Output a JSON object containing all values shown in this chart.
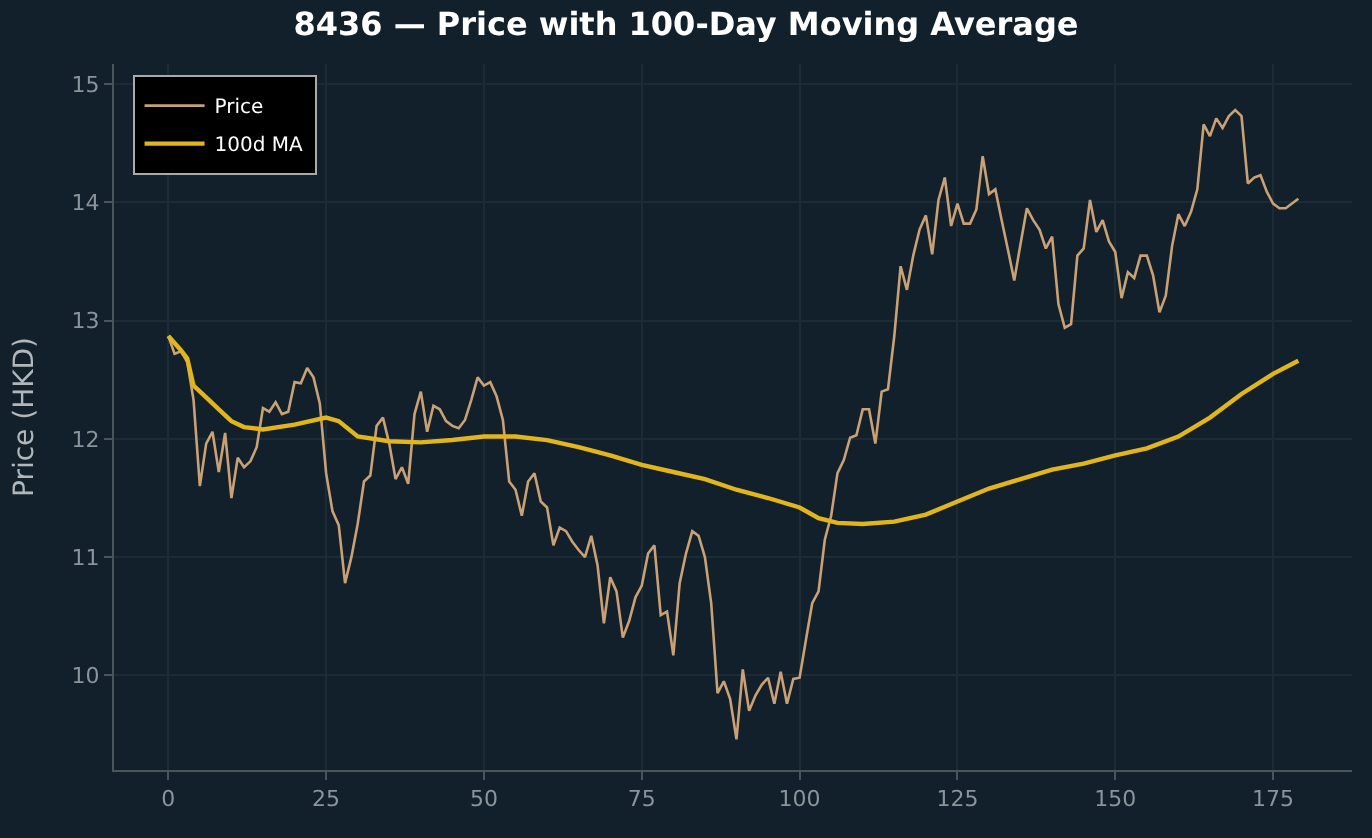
{
  "chart_data": {
    "type": "line",
    "title": "8436 — Price with 100-Day Moving Average",
    "ylabel": "Price (HKD)",
    "xlim": [
      -8.6,
      187.5
    ],
    "ylim": [
      9.2,
      15.17
    ],
    "xticks": [
      0,
      25,
      50,
      75,
      100,
      125,
      150,
      175
    ],
    "yticks": [
      10,
      11,
      12,
      13,
      14,
      15
    ],
    "grid": true,
    "legend": "top left",
    "series": [
      {
        "name": "Price",
        "color": "#c9a175",
        "x": [
          0,
          1,
          2,
          3,
          4,
          5,
          6,
          7,
          8,
          9,
          10,
          11,
          12,
          13,
          14,
          15,
          16,
          17,
          18,
          19,
          20,
          21,
          22,
          23,
          24,
          25,
          26,
          27,
          28,
          29,
          30,
          31,
          32,
          33,
          34,
          35,
          36,
          37,
          38,
          39,
          40,
          41,
          42,
          43,
          44,
          45,
          46,
          47,
          48,
          49,
          50,
          51,
          52,
          53,
          54,
          55,
          56,
          57,
          58,
          59,
          60,
          61,
          62,
          63,
          64,
          65,
          66,
          67,
          68,
          69,
          70,
          71,
          72,
          73,
          74,
          75,
          76,
          77,
          78,
          79,
          80,
          81,
          82,
          83,
          84,
          85,
          86,
          87,
          88,
          89,
          90,
          91,
          92,
          93,
          94,
          95,
          96,
          97,
          98,
          99,
          100,
          101,
          102,
          103,
          104,
          105,
          106,
          107,
          108,
          109,
          110,
          111,
          112,
          113,
          114,
          115,
          116,
          117,
          118,
          119,
          120,
          121,
          122,
          123,
          124,
          125,
          126,
          127,
          128,
          129,
          130,
          131,
          132,
          133,
          134,
          135,
          136,
          137,
          138,
          139,
          140,
          141,
          142,
          143,
          144,
          145,
          146,
          147,
          148,
          149,
          150,
          151,
          152,
          153,
          154,
          155,
          156,
          157,
          158,
          159,
          160,
          161,
          162,
          163,
          164,
          165,
          166,
          167,
          168,
          169,
          170,
          171,
          172,
          173,
          174,
          175,
          176,
          177,
          178,
          179
        ],
        "values": [
          12.87,
          12.72,
          12.74,
          12.65,
          12.33,
          11.6,
          11.96,
          12.06,
          11.72,
          12.05,
          11.5,
          11.84,
          11.76,
          11.81,
          11.93,
          12.26,
          12.23,
          12.31,
          12.21,
          12.23,
          12.48,
          12.47,
          12.6,
          12.52,
          12.3,
          11.71,
          11.39,
          11.27,
          10.78,
          11.0,
          11.28,
          11.64,
          11.69,
          12.11,
          12.18,
          11.96,
          11.66,
          11.76,
          11.62,
          12.21,
          12.4,
          12.06,
          12.28,
          12.25,
          12.15,
          12.11,
          12.09,
          12.16,
          12.33,
          12.52,
          12.45,
          12.48,
          12.36,
          12.16,
          11.64,
          11.57,
          11.35,
          11.64,
          11.71,
          11.47,
          11.42,
          11.1,
          11.25,
          11.22,
          11.13,
          11.06,
          11.0,
          11.18,
          10.93,
          10.44,
          10.83,
          10.71,
          10.32,
          10.46,
          10.66,
          10.76,
          11.03,
          11.1,
          10.51,
          10.54,
          10.17,
          10.78,
          11.03,
          11.22,
          11.18,
          11.0,
          10.61,
          9.85,
          9.95,
          9.8,
          9.46,
          10.05,
          9.7,
          9.83,
          9.92,
          9.98,
          9.76,
          10.03,
          9.76,
          9.97,
          9.98,
          10.3,
          10.61,
          10.71,
          11.15,
          11.35,
          11.71,
          11.82,
          12.01,
          12.03,
          12.25,
          12.25,
          11.96,
          12.4,
          12.42,
          12.87,
          13.46,
          13.26,
          13.55,
          13.77,
          13.89,
          13.56,
          14.02,
          14.21,
          13.8,
          13.99,
          13.82,
          13.82,
          13.94,
          14.39,
          14.07,
          14.11,
          13.85,
          13.6,
          13.34,
          13.65,
          13.95,
          13.85,
          13.77,
          13.61,
          13.71,
          13.14,
          12.94,
          12.97,
          13.55,
          13.61,
          14.02,
          13.75,
          13.85,
          13.67,
          13.58,
          13.19,
          13.41,
          13.36,
          13.55,
          13.55,
          13.38,
          13.07,
          13.21,
          13.63,
          13.9,
          13.8,
          13.92,
          14.11,
          14.66,
          14.56,
          14.71,
          14.63,
          14.73,
          14.78,
          14.73,
          14.16,
          14.21,
          14.23,
          14.09,
          13.99,
          13.95,
          13.95,
          13.99,
          14.03
        ]
      },
      {
        "name": "100d MA",
        "color": "#e3b51c",
        "x": [
          0,
          2,
          3,
          4,
          6,
          8,
          10,
          12,
          15,
          20,
          25,
          27,
          30,
          35,
          40,
          45,
          50,
          55,
          60,
          65,
          70,
          75,
          80,
          85,
          90,
          95,
          100,
          103,
          106,
          110,
          115,
          120,
          125,
          130,
          135,
          140,
          145,
          150,
          155,
          160,
          165,
          170,
          175,
          179
        ],
        "values": [
          12.87,
          12.75,
          12.68,
          12.45,
          12.35,
          12.25,
          12.15,
          12.1,
          12.08,
          12.12,
          12.18,
          12.15,
          12.02,
          11.98,
          11.97,
          11.99,
          12.02,
          12.02,
          11.99,
          11.93,
          11.86,
          11.78,
          11.72,
          11.66,
          11.57,
          11.5,
          11.42,
          11.33,
          11.29,
          11.28,
          11.3,
          11.36,
          11.47,
          11.58,
          11.66,
          11.74,
          11.79,
          11.86,
          11.92,
          12.02,
          12.18,
          12.38,
          12.55,
          12.66
        ]
      }
    ]
  }
}
